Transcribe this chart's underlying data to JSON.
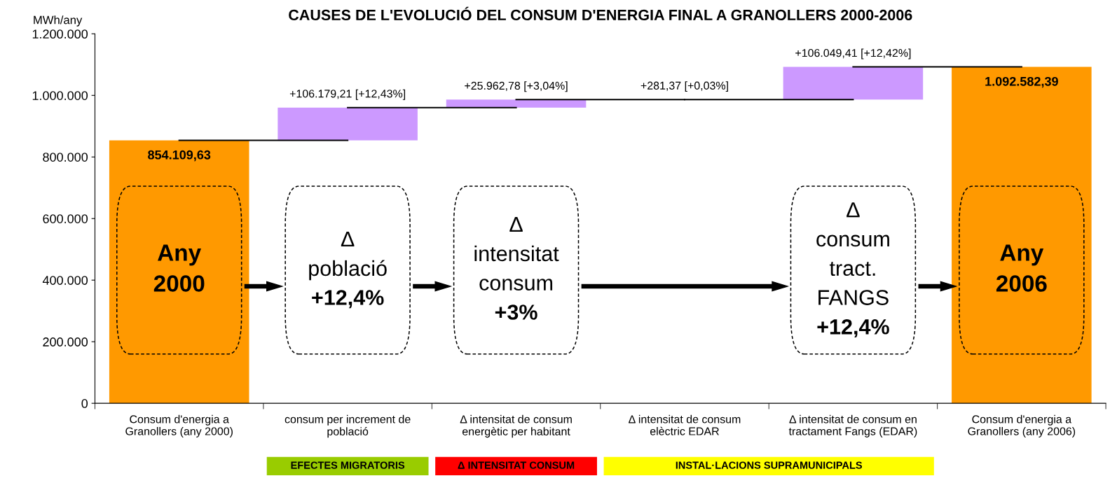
{
  "chart_data": {
    "type": "bar",
    "title": "CAUSES DE L'EVOLUCIÓ DEL CONSUM D'ENERGIA FINAL A GRANOLLERS 2000-2006",
    "ylabel": "MWh/any",
    "categories": [
      "Consum d'energia a\nGranollers (any 2000)",
      "consum per increment de\npoblació",
      "Δ intensitat de consum\nenergètic per habitant",
      "Δ intensitat de consum\nelèctric EDAR",
      "Δ intensitat de consum en\ntractament Fangs (EDAR)",
      "Consum d'energia a\nGranollers (any 2006)"
    ],
    "values": [
      854109.63,
      106179.21,
      25962.78,
      281.37,
      106049.41,
      1092582.39
    ],
    "base": [
      0,
      854109.63,
      960288.84,
      986251.62,
      986532.99,
      0
    ],
    "colors": [
      "#ff9900",
      "#cc99ff",
      "#cc99ff",
      "#cc99ff",
      "#cc99ff",
      "#ff9900"
    ],
    "value_labels": [
      "854.109,63",
      "+106.179,21 [+12,43%]",
      "+25.962,78 [+3,04%]",
      "+281,37 [+0,03%]",
      "+106.049,41 [+12,42%]",
      "1.092.582,39"
    ],
    "ylim": [
      0,
      1200000
    ],
    "yticks": [
      {
        "value": 0,
        "label": "0"
      },
      {
        "value": 200000,
        "label": "200.000"
      },
      {
        "value": 400000,
        "label": "400.000"
      },
      {
        "value": 600000,
        "label": "600.000"
      },
      {
        "value": 800000,
        "label": "800.000"
      },
      {
        "value": 1000000,
        "label": "1.000.000"
      },
      {
        "value": 1200000,
        "label": "1.200.000"
      }
    ],
    "grid": false,
    "legend": false,
    "annotations": [
      "Any\n2000",
      "Δ\npoblació\n+12,4%",
      "Δ\nintensitat\nconsum\n+3%",
      "Δ\nconsum\ntract.\nFANGS\n+12,4%",
      "Any\n2006",
      "EFECTES MIGRATORIS",
      "Δ INTENSITAT CONSUM",
      "INSTAL·LACIONS SUPRAMUNICIPALS"
    ]
  }
}
